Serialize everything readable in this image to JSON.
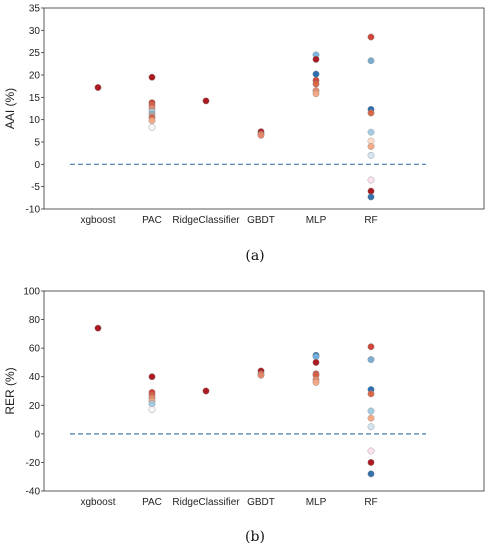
{
  "chart_data": [
    {
      "type": "scatter",
      "caption": "(a)",
      "ylabel": "AAI (%)",
      "xlabel": "",
      "categories": [
        "xgboost",
        "PAC",
        "RidgeClassifier",
        "GBDT",
        "MLP",
        "RF"
      ],
      "ylim": [
        -10,
        35
      ],
      "yticks": [
        -10,
        -5,
        0,
        5,
        10,
        15,
        20,
        25,
        30,
        35
      ],
      "reference_line": 0,
      "grid": false,
      "points": [
        {
          "category": "xgboost",
          "y": 17.2,
          "color": "#a50f15"
        },
        {
          "category": "PAC",
          "y": 19.5,
          "color": "#a50f15"
        },
        {
          "category": "PAC",
          "y": 13.8,
          "color": "#cb3b2e"
        },
        {
          "category": "PAC",
          "y": 13.2,
          "color": "#d9603f"
        },
        {
          "category": "PAC",
          "y": 12.5,
          "color": "#e8876a"
        },
        {
          "category": "PAC",
          "y": 11.8,
          "color": "#9ecae1"
        },
        {
          "category": "PAC",
          "y": 11.2,
          "color": "#a6a6a6"
        },
        {
          "category": "PAC",
          "y": 10.5,
          "color": "#d9603f"
        },
        {
          "category": "PAC",
          "y": 9.8,
          "color": "#f4a582"
        },
        {
          "category": "PAC",
          "y": 8.3,
          "color": "#f7f7f7"
        },
        {
          "category": "RidgeClassifier",
          "y": 14.2,
          "color": "#a50f15"
        },
        {
          "category": "GBDT",
          "y": 7.3,
          "color": "#a50f15"
        },
        {
          "category": "GBDT",
          "y": 6.8,
          "color": "#d9603f"
        },
        {
          "category": "GBDT",
          "y": 6.5,
          "color": "#e8876a"
        },
        {
          "category": "MLP",
          "y": 24.5,
          "color": "#74b2e0"
        },
        {
          "category": "MLP",
          "y": 23.5,
          "color": "#a50f15"
        },
        {
          "category": "MLP",
          "y": 20.2,
          "color": "#2166ac"
        },
        {
          "category": "MLP",
          "y": 18.8,
          "color": "#cb3b2e"
        },
        {
          "category": "MLP",
          "y": 18.0,
          "color": "#d9603f"
        },
        {
          "category": "MLP",
          "y": 16.5,
          "color": "#e8876a"
        },
        {
          "category": "MLP",
          "y": 15.8,
          "color": "#f4a582"
        },
        {
          "category": "RF",
          "y": 28.5,
          "color": "#cb3b2e"
        },
        {
          "category": "RF",
          "y": 23.2,
          "color": "#74a9cf"
        },
        {
          "category": "RF",
          "y": 12.3,
          "color": "#2166ac"
        },
        {
          "category": "RF",
          "y": 11.5,
          "color": "#d9603f"
        },
        {
          "category": "RF",
          "y": 7.2,
          "color": "#9ecae1"
        },
        {
          "category": "RF",
          "y": 5.2,
          "color": "#fddbc7"
        },
        {
          "category": "RF",
          "y": 4.0,
          "color": "#f4a582"
        },
        {
          "category": "RF",
          "y": 2.0,
          "color": "#d1e5f0"
        },
        {
          "category": "RF",
          "y": -3.5,
          "color": "#fde0ef"
        },
        {
          "category": "RF",
          "y": -6.0,
          "color": "#a50f15"
        },
        {
          "category": "RF",
          "y": -7.3,
          "color": "#2c6aa8"
        }
      ]
    },
    {
      "type": "scatter",
      "caption": "(b)",
      "ylabel": "RER (%)",
      "xlabel": "",
      "categories": [
        "xgboost",
        "PAC",
        "RidgeClassifier",
        "GBDT",
        "MLP",
        "RF"
      ],
      "ylim": [
        -40,
        100
      ],
      "yticks": [
        -40,
        -20,
        0,
        20,
        40,
        60,
        80,
        100
      ],
      "reference_line": 0,
      "grid": false,
      "points": [
        {
          "category": "xgboost",
          "y": 74,
          "color": "#a50f15"
        },
        {
          "category": "PAC",
          "y": 40,
          "color": "#a50f15"
        },
        {
          "category": "PAC",
          "y": 29,
          "color": "#cb3b2e"
        },
        {
          "category": "PAC",
          "y": 27,
          "color": "#d9603f"
        },
        {
          "category": "PAC",
          "y": 25,
          "color": "#e8876a"
        },
        {
          "category": "PAC",
          "y": 23,
          "color": "#f4a582"
        },
        {
          "category": "PAC",
          "y": 21,
          "color": "#9ecae1"
        },
        {
          "category": "PAC",
          "y": 17,
          "color": "#f7f7f7"
        },
        {
          "category": "RidgeClassifier",
          "y": 30,
          "color": "#a50f15"
        },
        {
          "category": "GBDT",
          "y": 44,
          "color": "#a50f15"
        },
        {
          "category": "GBDT",
          "y": 42,
          "color": "#d9603f"
        },
        {
          "category": "GBDT",
          "y": 41,
          "color": "#e8876a"
        },
        {
          "category": "MLP",
          "y": 55,
          "color": "#2166ac"
        },
        {
          "category": "MLP",
          "y": 54,
          "color": "#74b2e0"
        },
        {
          "category": "MLP",
          "y": 50,
          "color": "#a50f15"
        },
        {
          "category": "MLP",
          "y": 42,
          "color": "#cb3b2e"
        },
        {
          "category": "MLP",
          "y": 41,
          "color": "#d9603f"
        },
        {
          "category": "MLP",
          "y": 38,
          "color": "#e8876a"
        },
        {
          "category": "MLP",
          "y": 36,
          "color": "#f4a582"
        },
        {
          "category": "RF",
          "y": 61,
          "color": "#cb3b2e"
        },
        {
          "category": "RF",
          "y": 52,
          "color": "#74a9cf"
        },
        {
          "category": "RF",
          "y": 31,
          "color": "#2166ac"
        },
        {
          "category": "RF",
          "y": 28,
          "color": "#d9603f"
        },
        {
          "category": "RF",
          "y": 16,
          "color": "#9ecae1"
        },
        {
          "category": "RF",
          "y": 11,
          "color": "#f4a582"
        },
        {
          "category": "RF",
          "y": 5,
          "color": "#d1e5f0"
        },
        {
          "category": "RF",
          "y": -12,
          "color": "#fde0ef"
        },
        {
          "category": "RF",
          "y": -20,
          "color": "#a50f15"
        },
        {
          "category": "RF",
          "y": -28,
          "color": "#2c6aa8"
        }
      ]
    }
  ]
}
